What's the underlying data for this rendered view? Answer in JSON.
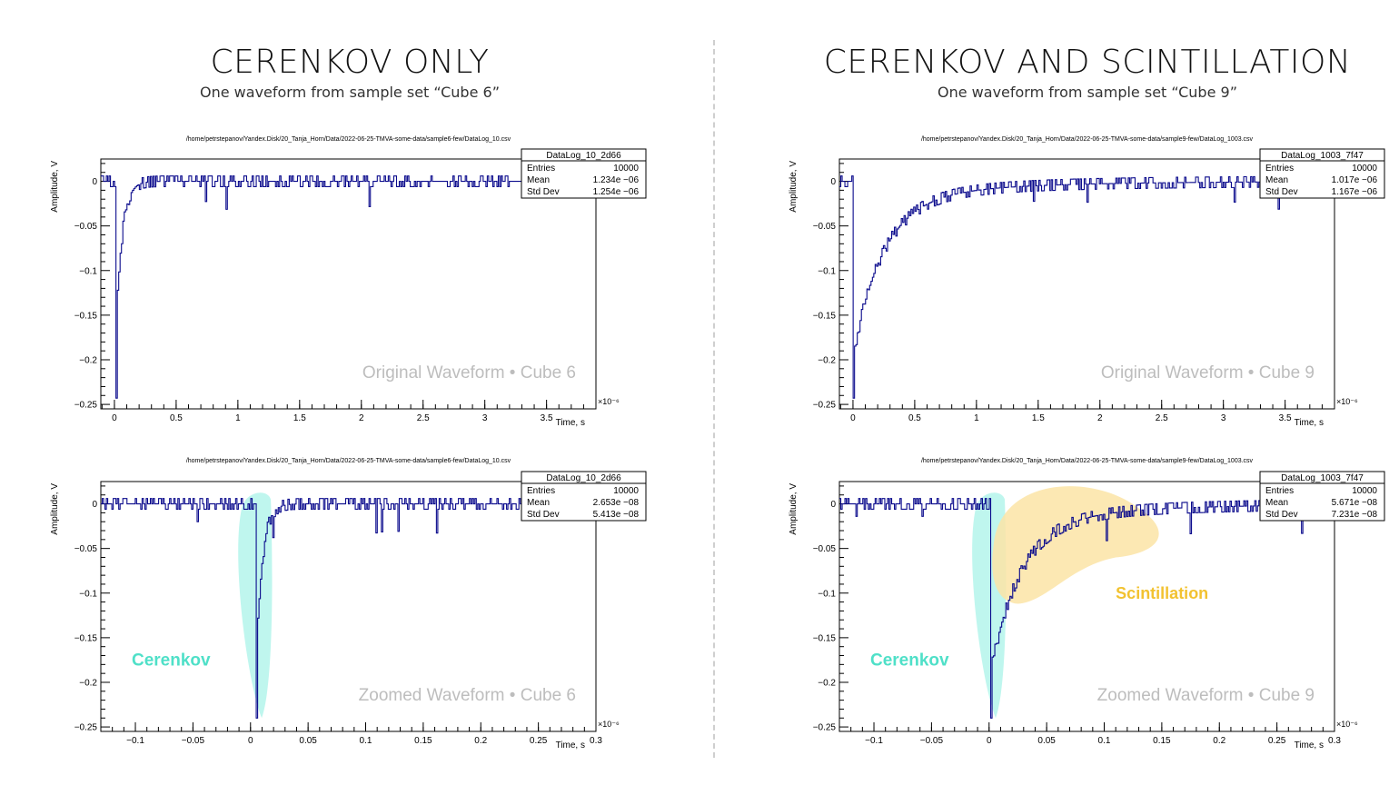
{
  "left": {
    "title": "CERENKOV ONLY",
    "subtitle": "One waveform from sample set “Cube 6”"
  },
  "right": {
    "title": "CERENKOV AND SCINTILLATION",
    "subtitle": "One waveform from sample set “Cube 9”"
  },
  "colors": {
    "trace": "#0a0a8c",
    "cerenkov": "#4fe0c8",
    "cerenkov_fill": "#b8f5ec",
    "scint": "#f2c230",
    "scint_fill": "#fbe4a6",
    "watermark": "#bdbdbd"
  },
  "chart_data": [
    {
      "type": "line",
      "path": "/home/petrstepanov/Yandex.Disk/20_Tanja_Horn/Data/2022-06-25-TMVA-some-data/sample6-few/DataLog_10.csv",
      "xlabel": "Time, s",
      "ylabel": "Amplitude, V",
      "x_exponent": "×10⁻⁶",
      "xlim": [
        -0.11,
        3.9
      ],
      "ylim": [
        -0.255,
        0.025
      ],
      "xticks": [
        0,
        0.5,
        1,
        1.5,
        2,
        2.5,
        3,
        3.5
      ],
      "xtick_labels": [
        "0",
        "0.5",
        "1",
        "1.5",
        "2",
        "2.5",
        "3",
        "3.5"
      ],
      "yticks": [
        0,
        -0.05,
        -0.1,
        -0.15,
        -0.2,
        -0.25
      ],
      "ytick_labels": [
        "0",
        "−0.05",
        "−0.1",
        "−0.15",
        "−0.2",
        "−0.25"
      ],
      "stats": {
        "name": "DataLog_10_2d66",
        "rows": [
          [
            "Entries",
            "10000"
          ],
          [
            "Mean",
            "1.234e −06"
          ],
          [
            "Std Dev",
            "1.254e −06"
          ]
        ]
      },
      "watermark": "Original Waveform • Cube 6",
      "pulse_min": -0.243,
      "pulse_t": 0.01,
      "decay": "fast",
      "scintillation": false
    },
    {
      "type": "line",
      "path": "/home/petrstepanov/Yandex.Disk/20_Tanja_Horn/Data/2022-06-25-TMVA-some-data/sample9-few/DataLog_1003.csv",
      "xlabel": "Time, s",
      "ylabel": "Amplitude, V",
      "x_exponent": "×10⁻⁶",
      "xlim": [
        -0.11,
        3.9
      ],
      "ylim": [
        -0.255,
        0.025
      ],
      "xticks": [
        0,
        0.5,
        1,
        1.5,
        2,
        2.5,
        3,
        3.5
      ],
      "xtick_labels": [
        "0",
        "0.5",
        "1",
        "1.5",
        "2",
        "2.5",
        "3",
        "3.5"
      ],
      "yticks": [
        0,
        -0.05,
        -0.1,
        -0.15,
        -0.2,
        -0.25
      ],
      "ytick_labels": [
        "0",
        "−0.05",
        "−0.1",
        "−0.15",
        "−0.2",
        "−0.25"
      ],
      "stats": {
        "name": "DataLog_1003_7f47",
        "rows": [
          [
            "Entries",
            "10000"
          ],
          [
            "Mean",
            "1.017e −06"
          ],
          [
            "Std Dev",
            "1.167e −06"
          ]
        ]
      },
      "watermark": "Original Waveform • Cube 9",
      "pulse_min": -0.243,
      "pulse_t": 0.005,
      "decay": "slow",
      "scintillation": false
    },
    {
      "type": "line",
      "path": "/home/petrstepanov/Yandex.Disk/20_Tanja_Horn/Data/2022-06-25-TMVA-some-data/sample6-few/DataLog_10.csv",
      "xlabel": "Time, s",
      "ylabel": "Amplitude, V",
      "x_exponent": "×10⁻⁶",
      "xlim": [
        -0.13,
        0.3
      ],
      "ylim": [
        -0.255,
        0.025
      ],
      "xticks": [
        -0.1,
        -0.05,
        0,
        0.05,
        0.1,
        0.15,
        0.2,
        0.25,
        0.3
      ],
      "xtick_labels": [
        "−0.1",
        "−0.05",
        "0",
        "0.05",
        "0.1",
        "0.15",
        "0.2",
        "0.25",
        "0.3"
      ],
      "yticks": [
        0,
        -0.05,
        -0.1,
        -0.15,
        -0.2,
        -0.25
      ],
      "ytick_labels": [
        "0",
        "−0.05",
        "−0.1",
        "−0.15",
        "−0.2",
        "−0.25"
      ],
      "stats": {
        "name": "DataLog_10_2d66",
        "rows": [
          [
            "Entries",
            "10000"
          ],
          [
            "Mean",
            "2.653e −08"
          ],
          [
            "Std Dev",
            "5.413e −08"
          ]
        ]
      },
      "watermark": "Zoomed Waveform • Cube 6",
      "pulse_min": -0.24,
      "pulse_t": 0.005,
      "decay": "fast",
      "scintillation": false,
      "cerenkov_label": "Cerenkov"
    },
    {
      "type": "line",
      "path": "/home/petrstepanov/Yandex.Disk/20_Tanja_Horn/Data/2022-06-25-TMVA-some-data/sample9-few/DataLog_1003.csv",
      "xlabel": "Time, s",
      "ylabel": "Amplitude, V",
      "x_exponent": "×10⁻⁶",
      "xlim": [
        -0.13,
        0.3
      ],
      "ylim": [
        -0.255,
        0.025
      ],
      "xticks": [
        -0.1,
        -0.05,
        0,
        0.05,
        0.1,
        0.15,
        0.2,
        0.25,
        0.3
      ],
      "xtick_labels": [
        "−0.1",
        "−0.05",
        "0",
        "0.05",
        "0.1",
        "0.15",
        "0.2",
        "0.25",
        "0.3"
      ],
      "yticks": [
        0,
        -0.05,
        -0.1,
        -0.15,
        -0.2,
        -0.25
      ],
      "ytick_labels": [
        "0",
        "−0.05",
        "−0.1",
        "−0.15",
        "−0.2",
        "−0.25"
      ],
      "stats": {
        "name": "DataLog_1003_7f47",
        "rows": [
          [
            "Entries",
            "10000"
          ],
          [
            "Mean",
            "5.671e −08"
          ],
          [
            "Std Dev",
            "7.231e −08"
          ]
        ]
      },
      "watermark": "Zoomed Waveform • Cube 9",
      "pulse_min": -0.24,
      "pulse_t": 0.001,
      "decay": "slow",
      "scintillation": true,
      "cerenkov_label": "Cerenkov",
      "scintillation_label": "Scintillation"
    }
  ]
}
